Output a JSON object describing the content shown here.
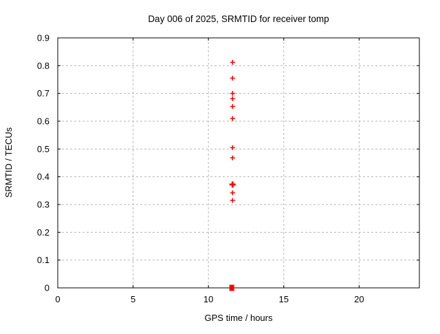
{
  "chart_data": {
    "type": "scatter",
    "title": "Day 006 of 2025, SRMTID for receiver tomp",
    "xlabel": "GPS time / hours",
    "ylabel": "SRMTID / TECUs",
    "xlim": [
      0,
      24
    ],
    "ylim": [
      0,
      0.9
    ],
    "xticks": {
      "values": [
        0,
        5,
        10,
        15,
        20
      ],
      "labels": [
        "0",
        "5",
        "10",
        "15",
        "20"
      ]
    },
    "yticks": {
      "values": [
        0,
        0.1,
        0.2,
        0.3,
        0.4,
        0.5,
        0.6,
        0.7,
        0.8,
        0.9
      ],
      "labels": [
        "0",
        "0.1",
        "0.2",
        "0.3",
        "0.4",
        "0.5",
        "0.6",
        "0.7",
        "0.8",
        "0.9"
      ]
    },
    "grid": "dashed",
    "legend_position": "none",
    "marker": "plus",
    "colors": {
      "marker": "#ff0000",
      "grid": "#b5b5b5",
      "axis": "#000000",
      "background": "#ffffff"
    },
    "points": [
      {
        "x": 11.6,
        "y": 0.812
      },
      {
        "x": 11.6,
        "y": 0.755
      },
      {
        "x": 11.6,
        "y": 0.7
      },
      {
        "x": 11.6,
        "y": 0.681
      },
      {
        "x": 11.6,
        "y": 0.653
      },
      {
        "x": 11.6,
        "y": 0.61
      },
      {
        "x": 11.6,
        "y": 0.505
      },
      {
        "x": 11.6,
        "y": 0.468
      },
      {
        "x": 11.6,
        "y": 0.372,
        "style": "bold-plus"
      },
      {
        "x": 11.6,
        "y": 0.342
      },
      {
        "x": 11.6,
        "y": 0.315
      },
      {
        "x": 11.55,
        "y": 0.0,
        "style": "filled-square"
      }
    ]
  }
}
